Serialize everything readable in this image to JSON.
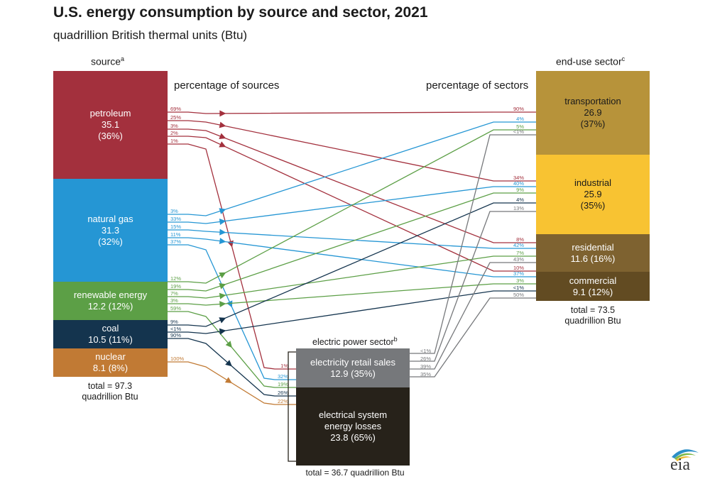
{
  "title": "U.S. energy consumption by source and sector, 2021",
  "subtitle": "quadrillion British thermal units (Btu)",
  "headers": {
    "source": "source",
    "source_sup": "a",
    "end_use": "end-use sector",
    "end_use_sup": "c",
    "pct_sources": "percentage of sources",
    "pct_sectors": "percentage of sectors",
    "electric": "electric power sector",
    "electric_sup": "b"
  },
  "sources": {
    "petroleum": {
      "name": "petroleum",
      "value": "35.1",
      "pct": "(36%)",
      "color": "#a3303d"
    },
    "natural_gas": {
      "name": "natural gas",
      "value": "31.3",
      "pct": "(32%)",
      "color": "#2596d4"
    },
    "renewable": {
      "name": "renewable energy",
      "value": "12.2 (12%)",
      "color": "#5c9f46"
    },
    "coal": {
      "name": "coal",
      "value": "10.5 (11%)",
      "color": "#14344e"
    },
    "nuclear": {
      "name": "nuclear",
      "value": "8.1 (8%)",
      "color": "#c17a34"
    }
  },
  "source_total": {
    "line1": "total = 97.3",
    "line2": "quadrillion Btu"
  },
  "sectors": {
    "transportation": {
      "name": "transportation",
      "value": "26.9",
      "pct": "(37%)",
      "color": "#b7933a"
    },
    "industrial": {
      "name": "industrial",
      "value": "25.9",
      "pct": "(35%)",
      "color": "#f8c332"
    },
    "residential": {
      "name": "residential",
      "value": "11.6 (16%)",
      "color": "#7e6230"
    },
    "commercial": {
      "name": "commercial",
      "value": "9.1 (12%)",
      "color": "#624b22"
    }
  },
  "sector_total": {
    "line1": "total = 73.5",
    "line2": "quadrillion Btu"
  },
  "electric": {
    "retail": {
      "name": "electricity retail sales",
      "value": "12.9 (35%)",
      "color": "#76787b"
    },
    "losses": {
      "name1": "electrical system",
      "name2": "energy losses",
      "value": "23.8 (65%)",
      "color": "#27221a"
    },
    "total": "total = 36.7 quadrillion Btu"
  },
  "logo_text": "eia",
  "flow_labels": {
    "petroleum": [
      "69%",
      "25%",
      "3%",
      "2%",
      "1%"
    ],
    "natural_gas": [
      "3%",
      "33%",
      "15%",
      "11%",
      "37%"
    ],
    "renewable": [
      "12%",
      "19%",
      "7%",
      "3%",
      "59%"
    ],
    "coal": [
      "9%",
      "<1%",
      "90%"
    ],
    "nuclear": [
      "100%"
    ],
    "transportation": [
      "90%",
      "4%",
      "5%",
      "<1%"
    ],
    "industrial": [
      "34%",
      "40%",
      "9%",
      "4%",
      "13%"
    ],
    "residential": [
      "8%",
      "42%",
      "7%",
      "43%"
    ],
    "commercial": [
      "10%",
      "37%",
      "3%",
      "<1%",
      "50%"
    ],
    "electric_in": [
      "1%",
      "32%",
      "19%",
      "26%",
      "22%"
    ],
    "electric_out": [
      "<1%",
      "26%",
      "39%",
      "35%"
    ]
  }
}
